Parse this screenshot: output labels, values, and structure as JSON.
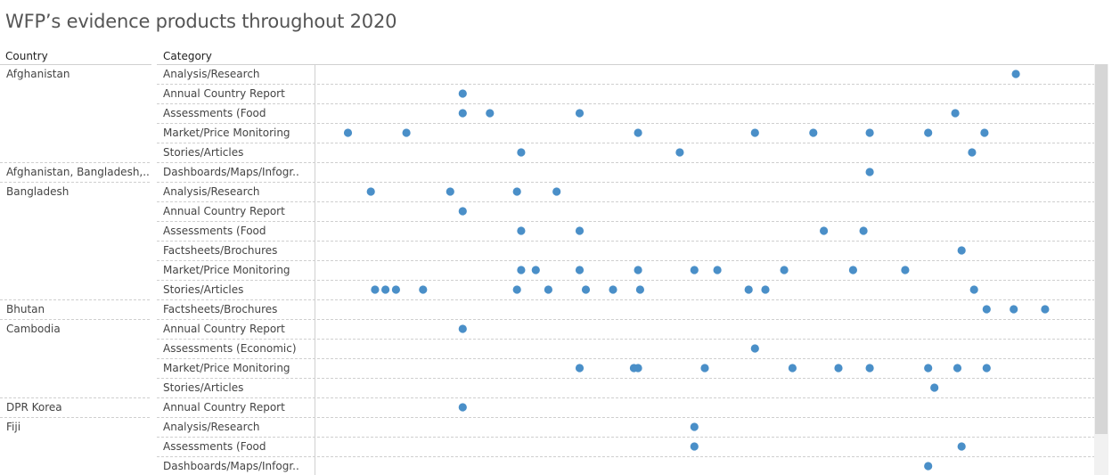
{
  "chart_data": {
    "type": "scatter",
    "title": "WFP’s evidence products throughout 2020",
    "column_headers": {
      "country": "Country",
      "category": "Category"
    },
    "x_unit": "day of year 2020",
    "xlim": [
      1,
      366
    ],
    "rows": [
      {
        "country": "Afghanistan",
        "category": "Analysis/Research",
        "points": [
          337
        ]
      },
      {
        "country": "",
        "category": "Annual Country Report",
        "points": [
          72
        ]
      },
      {
        "country": "",
        "category": "Assessments (Food",
        "points": [
          72,
          85,
          128,
          308
        ]
      },
      {
        "country": "",
        "category": "Market/Price Monitoring",
        "points": [
          17,
          45,
          156,
          212,
          240,
          267,
          295,
          322
        ]
      },
      {
        "country": "",
        "category": "Stories/Articles",
        "points": [
          100,
          176,
          316
        ]
      },
      {
        "country": "Afghanistan, Bangladesh,..",
        "category": "Dashboards/Maps/Infogr..",
        "points": [
          267
        ]
      },
      {
        "country": "Bangladesh",
        "category": "Analysis/Research",
        "points": [
          28,
          66,
          98,
          117
        ]
      },
      {
        "country": "",
        "category": "Annual Country Report",
        "points": [
          72
        ]
      },
      {
        "country": "",
        "category": "Assessments (Food",
        "points": [
          100,
          128,
          245,
          264
        ]
      },
      {
        "country": "",
        "category": "Factsheets/Brochures",
        "points": [
          311
        ]
      },
      {
        "country": "",
        "category": "Market/Price Monitoring",
        "points": [
          100,
          107,
          128,
          156,
          183,
          194,
          226,
          259,
          284
        ]
      },
      {
        "country": "",
        "category": "Stories/Articles",
        "points": [
          30,
          35,
          40,
          53,
          98,
          113,
          131,
          144,
          157,
          209,
          217,
          317
        ]
      },
      {
        "country": "Bhutan",
        "category": "Factsheets/Brochures",
        "points": [
          323,
          336,
          351
        ]
      },
      {
        "country": "Cambodia",
        "category": "Annual Country Report",
        "points": [
          72
        ]
      },
      {
        "country": "",
        "category": "Assessments (Economic)",
        "points": [
          212
        ]
      },
      {
        "country": "",
        "category": "Market/Price Monitoring",
        "points": [
          128,
          154,
          156,
          188,
          230,
          252,
          267,
          295,
          309,
          323
        ]
      },
      {
        "country": "",
        "category": "Stories/Articles",
        "points": [
          298
        ]
      },
      {
        "country": "DPR Korea",
        "category": "Annual Country Report",
        "points": [
          72
        ]
      },
      {
        "country": "Fiji",
        "category": "Analysis/Research",
        "points": [
          183
        ]
      },
      {
        "country": "",
        "category": "Assessments (Food",
        "points": [
          183,
          311
        ]
      },
      {
        "country": "",
        "category": "Dashboards/Maps/Infogr..",
        "points": [
          295
        ]
      }
    ]
  },
  "colors": {
    "dot": "#4a8fc8",
    "grid": "#cfcfcf",
    "axis": "#d0d0d0"
  }
}
